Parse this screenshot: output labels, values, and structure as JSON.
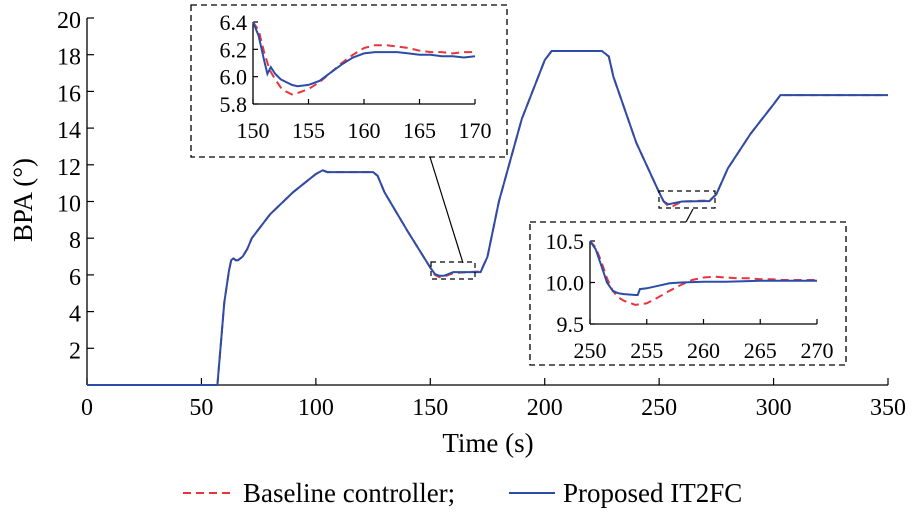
{
  "chart_data": [
    {
      "type": "line",
      "title": "",
      "xlabel": "Time (s)",
      "ylabel": "BPA (°)",
      "xlim": [
        0,
        350
      ],
      "ylim": [
        0,
        20
      ],
      "x_ticks": [
        "0",
        "50",
        "100",
        "150",
        "200",
        "250",
        "300",
        "350"
      ],
      "y_ticks": [
        "2",
        "4",
        "6",
        "8",
        "10",
        "12",
        "14",
        "16",
        "18",
        "20"
      ],
      "legend": {
        "placement": "bottom",
        "items": [
          "Baseline controller;",
          "Proposed IT2FC"
        ]
      },
      "series": [
        {
          "name": "Baseline controller;",
          "color": "#e8343c",
          "style": "dashed",
          "x": [
            0,
            57,
            58,
            60,
            62,
            63,
            64,
            65,
            66,
            68,
            70,
            72,
            80,
            90,
            100,
            103,
            105,
            110,
            125,
            127,
            130,
            140,
            150,
            152,
            154,
            156,
            160,
            170,
            172,
            175,
            180,
            190,
            200,
            203,
            205,
            210,
            225,
            228,
            230,
            240,
            250,
            252,
            254,
            256,
            260,
            270,
            272,
            275,
            280,
            290,
            300,
            303,
            305,
            310,
            350
          ],
          "y": [
            0,
            0,
            1.5,
            4.5,
            6.2,
            6.8,
            6.9,
            6.8,
            6.8,
            7.0,
            7.4,
            8.0,
            9.3,
            10.5,
            11.5,
            11.7,
            11.6,
            11.6,
            11.6,
            11.4,
            10.5,
            8.4,
            6.4,
            6.0,
            5.88,
            5.9,
            6.1,
            6.18,
            6.18,
            7.0,
            10.0,
            14.5,
            17.7,
            18.2,
            18.2,
            18.2,
            18.2,
            17.9,
            16.8,
            13.2,
            10.5,
            10.0,
            9.75,
            9.75,
            10.0,
            10.05,
            10.05,
            10.4,
            11.8,
            13.7,
            15.3,
            15.8,
            15.8,
            15.8,
            15.8
          ]
        },
        {
          "name": "Proposed IT2FC",
          "color": "#2b4da8",
          "style": "solid",
          "x": [
            0,
            57,
            58,
            60,
            62,
            63,
            64,
            65,
            66,
            68,
            70,
            72,
            80,
            90,
            100,
            103,
            105,
            110,
            125,
            127,
            130,
            140,
            150,
            152,
            154,
            156,
            160,
            170,
            172,
            175,
            180,
            190,
            200,
            203,
            205,
            210,
            225,
            228,
            230,
            240,
            250,
            252,
            254,
            256,
            260,
            270,
            272,
            275,
            280,
            290,
            300,
            303,
            305,
            310,
            350
          ],
          "y": [
            0,
            0,
            1.5,
            4.5,
            6.2,
            6.8,
            6.9,
            6.8,
            6.8,
            7.0,
            7.4,
            8.0,
            9.3,
            10.5,
            11.5,
            11.7,
            11.6,
            11.6,
            11.6,
            11.4,
            10.5,
            8.4,
            6.4,
            6.05,
            5.95,
            5.95,
            6.15,
            6.15,
            6.15,
            7.0,
            10.0,
            14.5,
            17.7,
            18.2,
            18.2,
            18.2,
            18.2,
            17.9,
            16.8,
            13.2,
            10.5,
            10.0,
            9.85,
            9.9,
            10.0,
            10.02,
            10.02,
            10.4,
            11.8,
            13.7,
            15.3,
            15.8,
            15.8,
            15.8,
            15.8
          ]
        }
      ]
    },
    {
      "type": "line",
      "title": "",
      "xlim": [
        150,
        170
      ],
      "ylim": [
        5.8,
        6.4
      ],
      "x_ticks": [
        "150",
        "155",
        "160",
        "165",
        "170"
      ],
      "y_ticks": [
        "5.8",
        "6.0",
        "6.2",
        "6.4"
      ],
      "series": [
        {
          "name": "Baseline controller;",
          "color": "#e8343c",
          "style": "dashed",
          "x": [
            150,
            150.5,
            151,
            151.5,
            152,
            152.5,
            153,
            153.5,
            154,
            155,
            156,
            157,
            158,
            159,
            160,
            161,
            162,
            163,
            164,
            165,
            166,
            167,
            168,
            169,
            170
          ],
          "y": [
            6.4,
            6.34,
            6.18,
            6.05,
            5.98,
            5.92,
            5.89,
            5.87,
            5.88,
            5.91,
            5.96,
            6.03,
            6.1,
            6.16,
            6.21,
            6.23,
            6.23,
            6.22,
            6.21,
            6.19,
            6.18,
            6.18,
            6.17,
            6.18,
            6.18
          ]
        },
        {
          "name": "Proposed IT2FC",
          "color": "#2b4da8",
          "style": "solid",
          "x": [
            150,
            150.5,
            151,
            151.3,
            151.6,
            152,
            152.5,
            153,
            153.5,
            154,
            155,
            156,
            157,
            158,
            159,
            160,
            161,
            162,
            163,
            164,
            165,
            166,
            167,
            168,
            169,
            170
          ],
          "y": [
            6.4,
            6.3,
            6.12,
            6.02,
            6.07,
            6.02,
            5.98,
            5.96,
            5.94,
            5.93,
            5.94,
            5.97,
            6.03,
            6.09,
            6.14,
            6.17,
            6.18,
            6.18,
            6.18,
            6.17,
            6.16,
            6.16,
            6.15,
            6.15,
            6.14,
            6.15
          ]
        }
      ]
    },
    {
      "type": "line",
      "title": "",
      "xlim": [
        250,
        270
      ],
      "ylim": [
        9.5,
        10.5
      ],
      "x_ticks": [
        "250",
        "255",
        "260",
        "265",
        "270"
      ],
      "y_ticks": [
        "9.5",
        "10.0",
        "10.5"
      ],
      "series": [
        {
          "name": "Baseline controller;",
          "color": "#e8343c",
          "style": "dashed",
          "x": [
            250,
            250.5,
            251,
            251.5,
            252,
            252.5,
            253,
            254,
            255,
            256,
            257,
            258,
            259,
            260,
            261,
            262,
            263,
            264,
            265,
            266,
            267,
            268,
            269,
            270
          ],
          "y": [
            10.5,
            10.42,
            10.25,
            10.05,
            9.9,
            9.82,
            9.78,
            9.73,
            9.75,
            9.82,
            9.9,
            9.97,
            10.03,
            10.06,
            10.07,
            10.06,
            10.05,
            10.05,
            10.04,
            10.04,
            10.03,
            10.03,
            10.03,
            10.03
          ]
        },
        {
          "name": "Proposed IT2FC",
          "color": "#2b4da8",
          "style": "solid",
          "x": [
            250,
            250.5,
            251,
            251.5,
            252,
            252.5,
            253,
            254,
            254.2,
            254.4,
            255,
            256,
            257,
            258,
            260,
            262,
            265,
            268,
            270
          ],
          "y": [
            10.5,
            10.4,
            10.2,
            10.0,
            9.9,
            9.87,
            9.86,
            9.85,
            9.85,
            9.92,
            9.93,
            9.96,
            9.99,
            10.0,
            10.01,
            10.01,
            10.02,
            10.02,
            10.02
          ]
        }
      ]
    }
  ]
}
